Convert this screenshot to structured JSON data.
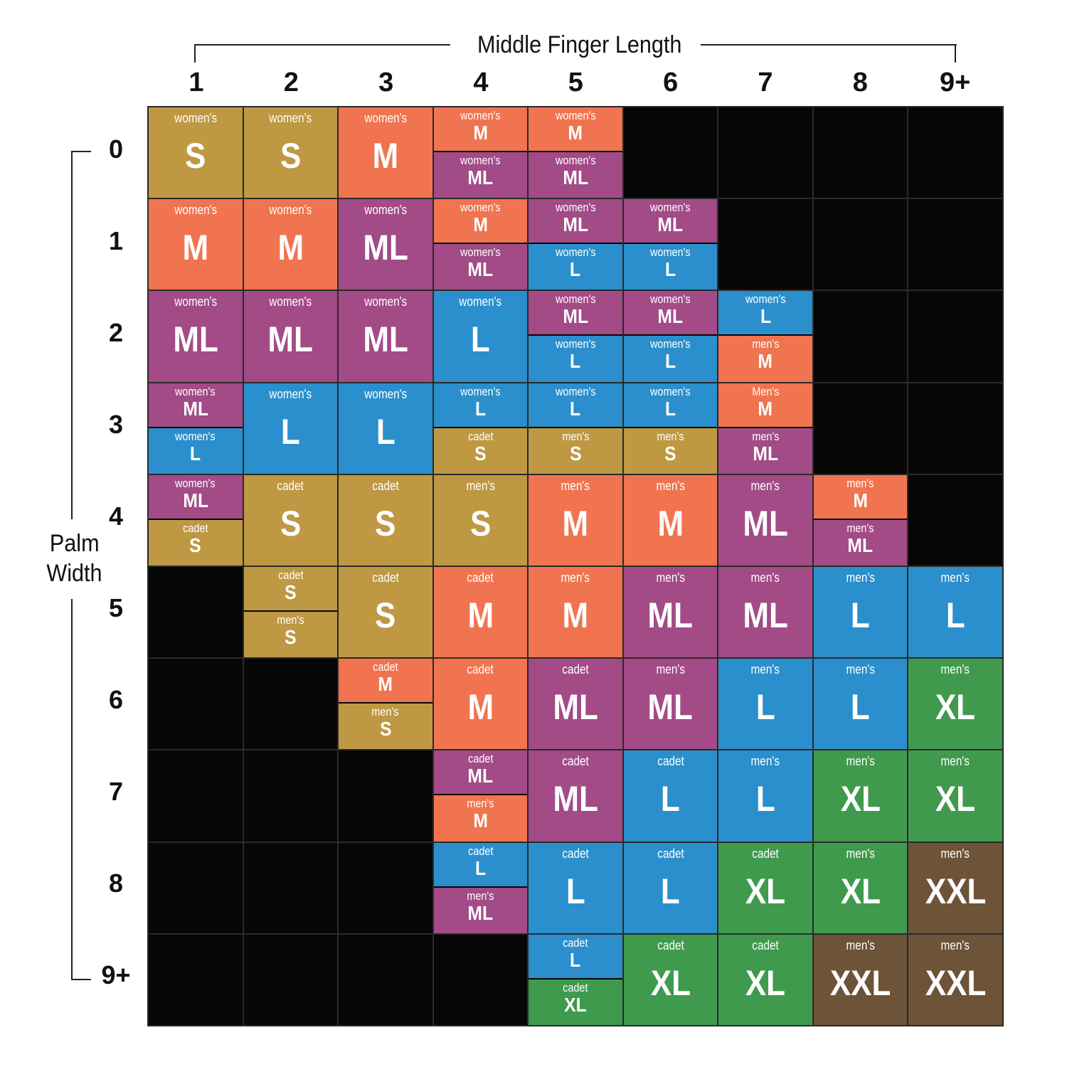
{
  "title_top": "Middle Finger Length",
  "title_left_1": "Palm",
  "title_left_2": "Width",
  "colors": {
    "S": "#BE9843",
    "M": "#F0744F",
    "ML": "#A24B87",
    "L": "#2A8FCC",
    "XL": "#3F9A4E",
    "XXL": "#6D5338",
    "empty": "#060606"
  },
  "chart_data": {
    "type": "table",
    "xlabel": "Middle Finger Length",
    "ylabel": "Palm Width",
    "columns": [
      "1",
      "2",
      "3",
      "4",
      "5",
      "6",
      "7",
      "8",
      "9+"
    ],
    "rows": [
      {
        "label": "0",
        "cells": [
          [
            {
              "brand": "women's",
              "size": "S"
            }
          ],
          [
            {
              "brand": "women's",
              "size": "S"
            }
          ],
          [
            {
              "brand": "women's",
              "size": "M"
            }
          ],
          [
            {
              "brand": "women's",
              "size": "M"
            },
            {
              "brand": "women's",
              "size": "ML"
            }
          ],
          [
            {
              "brand": "women's",
              "size": "M"
            },
            {
              "brand": "women's",
              "size": "ML"
            }
          ],
          [],
          [],
          [],
          []
        ]
      },
      {
        "label": "1",
        "cells": [
          [
            {
              "brand": "women's",
              "size": "M"
            }
          ],
          [
            {
              "brand": "women's",
              "size": "M"
            }
          ],
          [
            {
              "brand": "women's",
              "size": "ML"
            }
          ],
          [
            {
              "brand": "women's",
              "size": "M"
            },
            {
              "brand": "women's",
              "size": "ML"
            }
          ],
          [
            {
              "brand": "women's",
              "size": "ML"
            },
            {
              "brand": "women's",
              "size": "L"
            }
          ],
          [
            {
              "brand": "women's",
              "size": "ML"
            },
            {
              "brand": "women's",
              "size": "L"
            }
          ],
          [],
          [],
          []
        ]
      },
      {
        "label": "2",
        "cells": [
          [
            {
              "brand": "women's",
              "size": "ML"
            }
          ],
          [
            {
              "brand": "women's",
              "size": "ML"
            }
          ],
          [
            {
              "brand": "women's",
              "size": "ML"
            }
          ],
          [
            {
              "brand": "women's",
              "size": "L"
            }
          ],
          [
            {
              "brand": "women's",
              "size": "ML"
            },
            {
              "brand": "women's",
              "size": "L"
            }
          ],
          [
            {
              "brand": "women's",
              "size": "ML"
            },
            {
              "brand": "women's",
              "size": "L"
            }
          ],
          [
            {
              "brand": "women's",
              "size": "L"
            },
            {
              "brand": "men's",
              "size": "M"
            }
          ],
          [],
          []
        ]
      },
      {
        "label": "3",
        "cells": [
          [
            {
              "brand": "women's",
              "size": "ML"
            },
            {
              "brand": "women's",
              "size": "L"
            }
          ],
          [
            {
              "brand": "women's",
              "size": "L"
            }
          ],
          [
            {
              "brand": "women's",
              "size": "L"
            }
          ],
          [
            {
              "brand": "women's",
              "size": "L"
            },
            {
              "brand": "cadet",
              "size": "S"
            }
          ],
          [
            {
              "brand": "women's",
              "size": "L"
            },
            {
              "brand": "men's",
              "size": "S"
            }
          ],
          [
            {
              "brand": "women's",
              "size": "L"
            },
            {
              "brand": "men's",
              "size": "S"
            }
          ],
          [
            {
              "brand": "Men's",
              "size": "M"
            },
            {
              "brand": "men's",
              "size": "ML"
            }
          ],
          [],
          []
        ]
      },
      {
        "label": "4",
        "cells": [
          [
            {
              "brand": "women's",
              "size": "ML"
            },
            {
              "brand": "cadet",
              "size": "S"
            }
          ],
          [
            {
              "brand": "cadet",
              "size": "S"
            }
          ],
          [
            {
              "brand": "cadet",
              "size": "S"
            }
          ],
          [
            {
              "brand": "men's",
              "size": "S"
            }
          ],
          [
            {
              "brand": "men's",
              "size": "M"
            }
          ],
          [
            {
              "brand": "men's",
              "size": "M"
            }
          ],
          [
            {
              "brand": "men's",
              "size": "ML"
            }
          ],
          [
            {
              "brand": "men's",
              "size": "M"
            },
            {
              "brand": "men's",
              "size": "ML"
            }
          ],
          []
        ]
      },
      {
        "label": "5",
        "cells": [
          [],
          [
            {
              "brand": "cadet",
              "size": "S"
            },
            {
              "brand": "men's",
              "size": "S"
            }
          ],
          [
            {
              "brand": "cadet",
              "size": "S"
            }
          ],
          [
            {
              "brand": "cadet",
              "size": "M"
            }
          ],
          [
            {
              "brand": "men's",
              "size": "M"
            }
          ],
          [
            {
              "brand": "men's",
              "size": "ML"
            }
          ],
          [
            {
              "brand": "men's",
              "size": "ML"
            }
          ],
          [
            {
              "brand": "men's",
              "size": "L"
            }
          ],
          [
            {
              "brand": "men's",
              "size": "L"
            }
          ]
        ]
      },
      {
        "label": "6",
        "cells": [
          [],
          [],
          [
            {
              "brand": "cadet",
              "size": "M"
            },
            {
              "brand": "men's",
              "size": "S"
            }
          ],
          [
            {
              "brand": "cadet",
              "size": "M"
            }
          ],
          [
            {
              "brand": "cadet",
              "size": "ML"
            }
          ],
          [
            {
              "brand": "men's",
              "size": "ML"
            }
          ],
          [
            {
              "brand": "men's",
              "size": "L"
            }
          ],
          [
            {
              "brand": "men's",
              "size": "L"
            }
          ],
          [
            {
              "brand": "men's",
              "size": "XL"
            }
          ]
        ]
      },
      {
        "label": "7",
        "cells": [
          [],
          [],
          [],
          [
            {
              "brand": "cadet",
              "size": "ML"
            },
            {
              "brand": "men's",
              "size": "M"
            }
          ],
          [
            {
              "brand": "cadet",
              "size": "ML"
            }
          ],
          [
            {
              "brand": "cadet",
              "size": "L"
            }
          ],
          [
            {
              "brand": "men's",
              "size": "L"
            }
          ],
          [
            {
              "brand": "men's",
              "size": "XL"
            }
          ],
          [
            {
              "brand": "men's",
              "size": "XL"
            }
          ]
        ]
      },
      {
        "label": "8",
        "cells": [
          [],
          [],
          [],
          [
            {
              "brand": "cadet",
              "size": "L"
            },
            {
              "brand": "men's",
              "size": "ML"
            }
          ],
          [
            {
              "brand": "cadet",
              "size": "L"
            }
          ],
          [
            {
              "brand": "cadet",
              "size": "L"
            }
          ],
          [
            {
              "brand": "cadet",
              "size": "XL"
            }
          ],
          [
            {
              "brand": "men's",
              "size": "XL"
            }
          ],
          [
            {
              "brand": "men's",
              "size": "XXL"
            }
          ]
        ]
      },
      {
        "label": "9+",
        "cells": [
          [],
          [],
          [],
          [],
          [
            {
              "brand": "cadet",
              "size": "L"
            },
            {
              "brand": "cadet",
              "size": "XL"
            }
          ],
          [
            {
              "brand": "cadet",
              "size": "XL"
            }
          ],
          [
            {
              "brand": "cadet",
              "size": "XL"
            }
          ],
          [
            {
              "brand": "men's",
              "size": "XXL"
            }
          ],
          [
            {
              "brand": "men's",
              "size": "XXL"
            }
          ]
        ]
      }
    ]
  }
}
